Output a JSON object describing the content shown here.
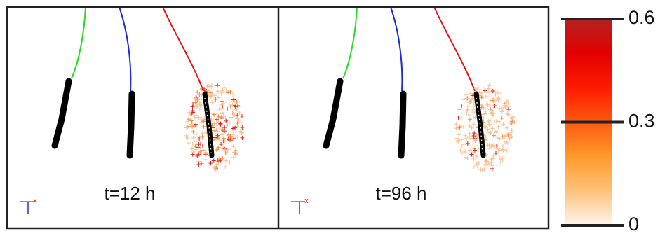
{
  "panels": [
    {
      "label": "t=12 h"
    },
    {
      "label": "t=96 h"
    }
  ],
  "colorbar": {
    "lim": [
      0,
      0.6
    ],
    "ticks": [
      0,
      0.3,
      0.6
    ],
    "colors": [
      "#fff6ee",
      "#ffc27a",
      "#ff9a2a",
      "#ff5a10",
      "#ff1a00",
      "#e30000",
      "#b22222"
    ]
  }
}
